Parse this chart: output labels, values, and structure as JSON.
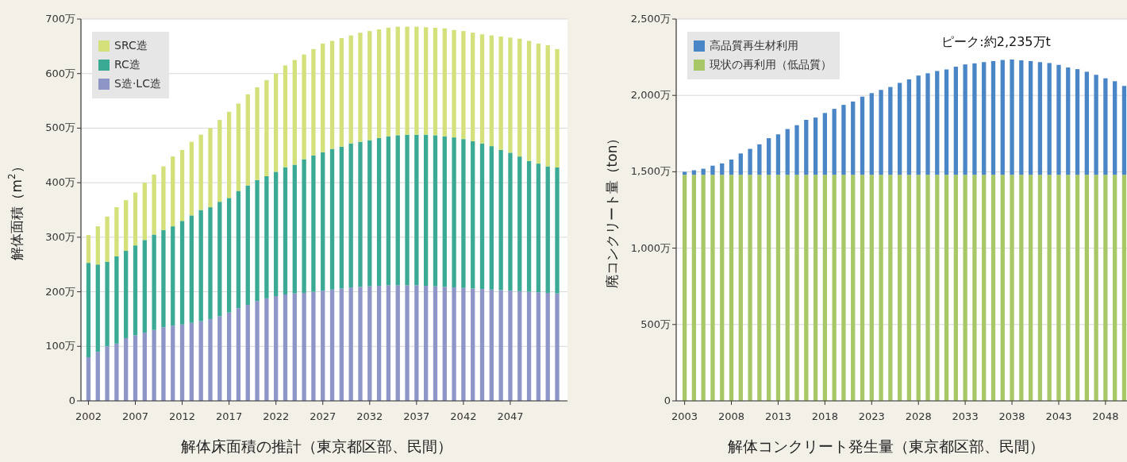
{
  "chart_data": [
    {
      "type": "bar",
      "stacked": true,
      "xlabel": "解体床面積の推計（東京都区部、民間）",
      "ylabel": "解体面積（m$^{2}$）",
      "x": [
        2002,
        2003,
        2004,
        2005,
        2006,
        2007,
        2008,
        2009,
        2010,
        2011,
        2012,
        2013,
        2014,
        2015,
        2016,
        2017,
        2018,
        2019,
        2020,
        2021,
        2022,
        2023,
        2024,
        2025,
        2026,
        2027,
        2028,
        2029,
        2030,
        2031,
        2032,
        2033,
        2034,
        2035,
        2036,
        2037,
        2038,
        2039,
        2040,
        2041,
        2042,
        2043,
        2044,
        2045,
        2046,
        2047,
        2048,
        2049,
        2050,
        2051,
        2052
      ],
      "xlim": [
        2001.2,
        2053.1
      ],
      "xticks": [
        2002,
        2007,
        2012,
        2017,
        2022,
        2027,
        2032,
        2037,
        2042,
        2047
      ],
      "ylim": [
        0,
        700
      ],
      "yticks": [
        {
          "value": 0,
          "label": "0"
        },
        {
          "value": 100,
          "label": "100万"
        },
        {
          "value": 200,
          "label": "200万"
        },
        {
          "value": 300,
          "label": "300万"
        },
        {
          "value": 400,
          "label": "400万"
        },
        {
          "value": 500,
          "label": "500万"
        },
        {
          "value": 600,
          "label": "600万"
        },
        {
          "value": 700,
          "label": "700万"
        }
      ],
      "grid": "y",
      "legend": "top left",
      "series": [
        {
          "name": "S造·LC造",
          "color": "#8e96c8",
          "values": [
            80,
            90,
            100,
            105,
            115,
            120,
            125,
            130,
            135,
            138,
            140,
            143,
            146,
            150,
            155,
            162,
            170,
            176,
            183,
            188,
            192,
            195,
            197,
            198,
            200,
            202,
            204,
            206,
            208,
            209,
            210,
            211,
            212,
            212,
            212,
            212,
            211,
            210,
            209,
            208,
            207,
            206,
            205,
            204,
            203,
            202,
            201,
            200,
            199,
            198,
            197
          ]
        },
        {
          "name": "RC造",
          "color": "#3aaa94",
          "values": [
            173,
            160,
            155,
            160,
            160,
            165,
            170,
            175,
            178,
            182,
            190,
            197,
            204,
            205,
            210,
            210,
            215,
            219,
            222,
            224,
            228,
            233,
            236,
            245,
            250,
            254,
            258,
            260,
            264,
            266,
            268,
            271,
            273,
            275,
            276,
            276,
            277,
            277,
            276,
            275,
            273,
            270,
            267,
            263,
            257,
            253,
            247,
            240,
            236,
            232,
            231
          ]
        },
        {
          "name": "SRC造",
          "color": "#d4e07a",
          "values": [
            51,
            70,
            83,
            90,
            93,
            97,
            105,
            110,
            117,
            128,
            130,
            135,
            138,
            145,
            150,
            158,
            160,
            167,
            170,
            176,
            180,
            187,
            192,
            192,
            195,
            199,
            198,
            199,
            198,
            200,
            200,
            199,
            199,
            199,
            198,
            198,
            197,
            197,
            198,
            197,
            198,
            199,
            200,
            203,
            208,
            211,
            216,
            220,
            220,
            222,
            217
          ]
        }
      ]
    },
    {
      "type": "bar",
      "stacked": true,
      "xlabel": "解体コンクリート発生量（東京都区部、民間）",
      "ylabel": "廃コンクリート量（ton）",
      "x": [
        2003,
        2004,
        2005,
        2006,
        2007,
        2008,
        2009,
        2010,
        2011,
        2012,
        2013,
        2014,
        2015,
        2016,
        2017,
        2018,
        2019,
        2020,
        2021,
        2022,
        2023,
        2024,
        2025,
        2026,
        2027,
        2028,
        2029,
        2030,
        2031,
        2032,
        2033,
        2034,
        2035,
        2036,
        2037,
        2038,
        2039,
        2040,
        2041,
        2042,
        2043,
        2044,
        2045,
        2046,
        2047,
        2048,
        2049,
        2050
      ],
      "xlim": [
        2002.1,
        2050.3
      ],
      "xticks": [
        2003,
        2008,
        2013,
        2018,
        2023,
        2028,
        2033,
        2038,
        2043,
        2048
      ],
      "ylim": [
        0,
        2500
      ],
      "yticks": [
        {
          "value": 0,
          "label": "0"
        },
        {
          "value": 500,
          "label": "500万"
        },
        {
          "value": 1000,
          "label": "1,000万"
        },
        {
          "value": 1500,
          "label": "1,500万"
        },
        {
          "value": 2000,
          "label": "2,000万"
        },
        {
          "value": 2500,
          "label": "2,500万"
        }
      ],
      "grid": "y",
      "legend": "top left",
      "annotations": [
        {
          "text": "ピーク:約2,235万t",
          "x": 2038,
          "y": 2235
        }
      ],
      "series": [
        {
          "name": "現状の再利用（低品質）",
          "color": "#a8c868",
          "values": [
            1480,
            1480,
            1480,
            1480,
            1480,
            1480,
            1480,
            1480,
            1480,
            1480,
            1480,
            1480,
            1480,
            1480,
            1480,
            1480,
            1480,
            1480,
            1480,
            1480,
            1480,
            1480,
            1480,
            1480,
            1480,
            1480,
            1480,
            1480,
            1480,
            1480,
            1480,
            1480,
            1480,
            1480,
            1480,
            1480,
            1480,
            1480,
            1480,
            1480,
            1480,
            1480,
            1480,
            1480,
            1480,
            1480,
            1480,
            1480
          ]
        },
        {
          "name": "高品質再生材利用",
          "color": "#4a86c6",
          "values": [
            20,
            30,
            40,
            60,
            75,
            100,
            140,
            170,
            200,
            240,
            265,
            300,
            325,
            360,
            375,
            405,
            432,
            458,
            480,
            512,
            535,
            556,
            575,
            602,
            625,
            650,
            665,
            680,
            690,
            708,
            723,
            730,
            738,
            745,
            752,
            755,
            750,
            745,
            738,
            732,
            720,
            703,
            692,
            675,
            655,
            632,
            613,
            582
          ]
        }
      ]
    }
  ]
}
